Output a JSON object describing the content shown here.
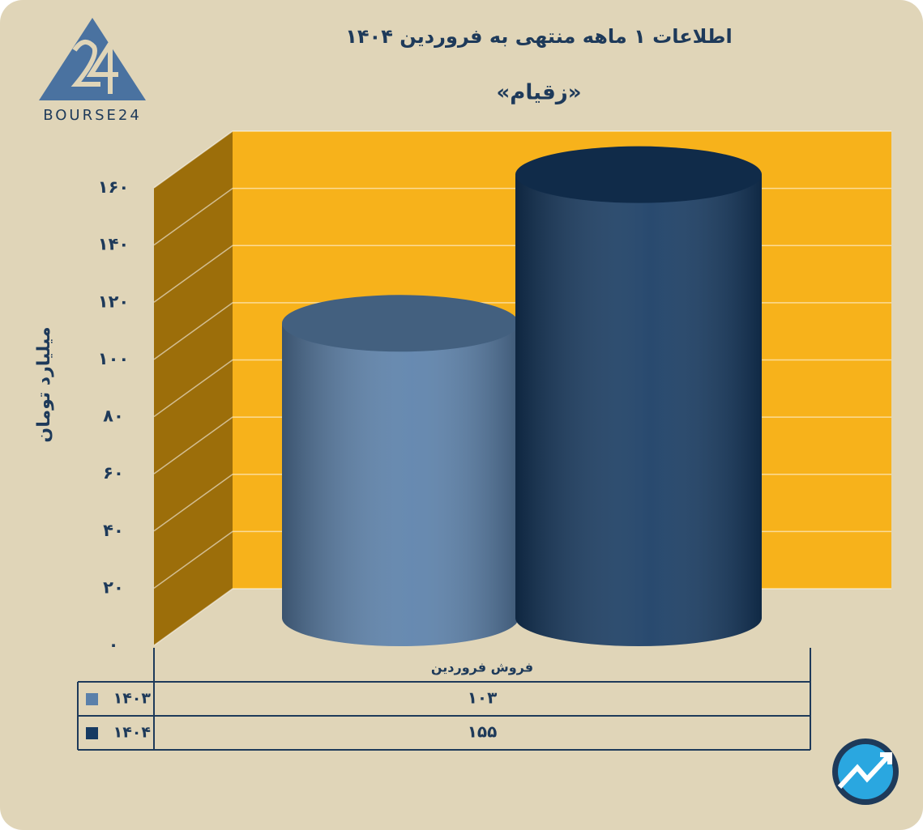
{
  "chart_data": {
    "type": "cylinder",
    "title": "اطلاعات ۱ ماهه منتهی به فروردین ۱۴۰۴",
    "subtitle": "«زقیام»",
    "y_axis_label": "میلیارد تومان",
    "categories": [
      "فروش فروردین"
    ],
    "series": [
      {
        "name": "۱۴۰۳",
        "color": "#5a80aa",
        "values": [
          103
        ],
        "value_labels": [
          "۱۰۳"
        ]
      },
      {
        "name": "۱۴۰۴",
        "color": "#163a62",
        "values": [
          155
        ],
        "value_labels": [
          "۱۵۵"
        ]
      }
    ],
    "ylim": [
      0,
      160
    ],
    "yticks": [
      {
        "value": 0,
        "label": "۰"
      },
      {
        "value": 20,
        "label": "۲۰"
      },
      {
        "value": 40,
        "label": "۴۰"
      },
      {
        "value": 60,
        "label": "۶۰"
      },
      {
        "value": 80,
        "label": "۸۰"
      },
      {
        "value": 100,
        "label": "۱۰۰"
      },
      {
        "value": 120,
        "label": "۱۲۰"
      },
      {
        "value": 140,
        "label": "۱۴۰"
      },
      {
        "value": 160,
        "label": "۱۶۰"
      }
    ],
    "grid": true,
    "wall_color": "#f7b21b",
    "side_wall_color": "#9c6e0a"
  },
  "logo": {
    "text": "BOURSE24"
  }
}
